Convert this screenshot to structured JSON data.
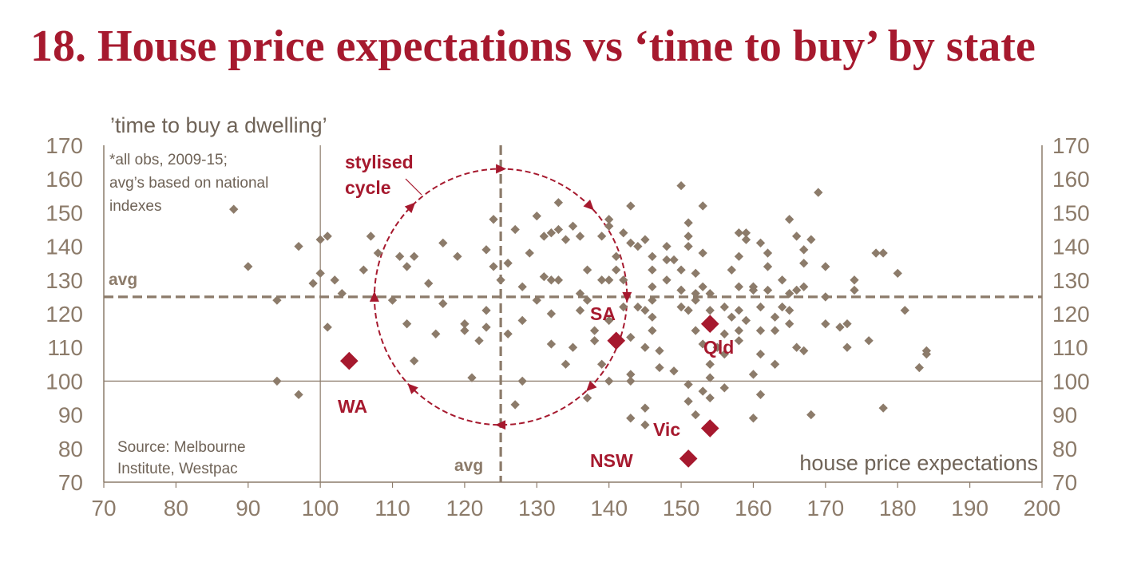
{
  "title": "18. House price expectations vs ‘time to buy’ by state",
  "chart_data": {
    "type": "scatter",
    "ylabel": "’time to buy a dwelling’",
    "xlabel": "house price expectations",
    "xlim": [
      70,
      200
    ],
    "ylim": [
      70,
      170
    ],
    "x_ticks": [
      "70",
      "80",
      "90",
      "100",
      "110",
      "120",
      "130",
      "140",
      "150",
      "160",
      "170",
      "180",
      "190",
      "200"
    ],
    "y_ticks": [
      "70",
      "80",
      "90",
      "100",
      "110",
      "120",
      "130",
      "140",
      "150",
      "160",
      "170"
    ],
    "y_ticks_right": [
      "70",
      "80",
      "90",
      "100",
      "110",
      "120",
      "130",
      "140",
      "150",
      "160",
      "170"
    ],
    "avg_x": 125,
    "avg_y": 125,
    "avg_label_h": "avg",
    "avg_label_v": "avg",
    "note_lines": [
      "*all obs, 2009-15;",
      "avg’s based on national",
      "indexes"
    ],
    "source_lines": [
      "Source: Melbourne",
      "Institute, Westpac"
    ],
    "cycle_label_lines": [
      "stylised",
      "cycle"
    ],
    "cycle": {
      "center_x": 125,
      "center_y": 125,
      "radius_x": 17.5,
      "radius_y": 38
    },
    "colors": {
      "observations": "#8c7b6a",
      "states": "#a6192e",
      "axis": "#8c7b6a"
    },
    "observations": [
      [
        88,
        151
      ],
      [
        90,
        134
      ],
      [
        94,
        124
      ],
      [
        94,
        100
      ],
      [
        97,
        140
      ],
      [
        97,
        96
      ],
      [
        99,
        129
      ],
      [
        100,
        142
      ],
      [
        100,
        132
      ],
      [
        101,
        116
      ],
      [
        101,
        143
      ],
      [
        102,
        130
      ],
      [
        103,
        126
      ],
      [
        106,
        133
      ],
      [
        107,
        143
      ],
      [
        108,
        138
      ],
      [
        110,
        124
      ],
      [
        111,
        137
      ],
      [
        112,
        134
      ],
      [
        112,
        117
      ],
      [
        113,
        106
      ],
      [
        113,
        137
      ],
      [
        115,
        129
      ],
      [
        116,
        114
      ],
      [
        117,
        141
      ],
      [
        117,
        123
      ],
      [
        119,
        137
      ],
      [
        120,
        115
      ],
      [
        120,
        117
      ],
      [
        121,
        101
      ],
      [
        122,
        112
      ],
      [
        123,
        116
      ],
      [
        123,
        121
      ],
      [
        123,
        139
      ],
      [
        124,
        134
      ],
      [
        124,
        148
      ],
      [
        125,
        130
      ],
      [
        126,
        114
      ],
      [
        126,
        135
      ],
      [
        127,
        145
      ],
      [
        127,
        93
      ],
      [
        128,
        100
      ],
      [
        128,
        128
      ],
      [
        129,
        138
      ],
      [
        130,
        149
      ],
      [
        130,
        124
      ],
      [
        131,
        131
      ],
      [
        131,
        143
      ],
      [
        132,
        144
      ],
      [
        132,
        111
      ],
      [
        132,
        120
      ],
      [
        132,
        130
      ],
      [
        133,
        153
      ],
      [
        133,
        130
      ],
      [
        133,
        145
      ],
      [
        134,
        142
      ],
      [
        135,
        110
      ],
      [
        135,
        146
      ],
      [
        136,
        143
      ],
      [
        136,
        126
      ],
      [
        137,
        124
      ],
      [
        137,
        133
      ],
      [
        138,
        112
      ],
      [
        138,
        115
      ],
      [
        139,
        130
      ],
      [
        139,
        143
      ],
      [
        139,
        105
      ],
      [
        140,
        100
      ],
      [
        140,
        146
      ],
      [
        140,
        130
      ],
      [
        140,
        118
      ],
      [
        140,
        148
      ],
      [
        141,
        133
      ],
      [
        141,
        137
      ],
      [
        142,
        130
      ],
      [
        142,
        144
      ],
      [
        142,
        122
      ],
      [
        143,
        100
      ],
      [
        143,
        102
      ],
      [
        143,
        89
      ],
      [
        143,
        113
      ],
      [
        143,
        141
      ],
      [
        143,
        152
      ],
      [
        144,
        122
      ],
      [
        144,
        140
      ],
      [
        145,
        142
      ],
      [
        145,
        121
      ],
      [
        145,
        92
      ],
      [
        145,
        110
      ],
      [
        146,
        133
      ],
      [
        146,
        137
      ],
      [
        146,
        128
      ],
      [
        146,
        124
      ],
      [
        146,
        119
      ],
      [
        147,
        109
      ],
      [
        147,
        104
      ],
      [
        148,
        140
      ],
      [
        148,
        136
      ],
      [
        148,
        130
      ],
      [
        149,
        136
      ],
      [
        150,
        127
      ],
      [
        150,
        133
      ],
      [
        150,
        127
      ],
      [
        150,
        122
      ],
      [
        150,
        158
      ],
      [
        151,
        140
      ],
      [
        151,
        147
      ],
      [
        151,
        143
      ],
      [
        151,
        121
      ],
      [
        151,
        99
      ],
      [
        151,
        94
      ],
      [
        152,
        90
      ],
      [
        152,
        126
      ],
      [
        152,
        132
      ],
      [
        152,
        124
      ],
      [
        152,
        115
      ],
      [
        153,
        152
      ],
      [
        153,
        128
      ],
      [
        153,
        97
      ],
      [
        153,
        138
      ],
      [
        153,
        111
      ],
      [
        154,
        105
      ],
      [
        154,
        121
      ],
      [
        154,
        126
      ],
      [
        154,
        101
      ],
      [
        154,
        95
      ],
      [
        155,
        110
      ],
      [
        156,
        98
      ],
      [
        156,
        114
      ],
      [
        156,
        108
      ],
      [
        157,
        133
      ],
      [
        157,
        119
      ],
      [
        158,
        144
      ],
      [
        158,
        128
      ],
      [
        158,
        115
      ],
      [
        158,
        112
      ],
      [
        158,
        121
      ],
      [
        159,
        118
      ],
      [
        159,
        142
      ],
      [
        159,
        144
      ],
      [
        160,
        127
      ],
      [
        160,
        102
      ],
      [
        160,
        89
      ],
      [
        161,
        108
      ],
      [
        161,
        122
      ],
      [
        161,
        115
      ],
      [
        161,
        96
      ],
      [
        161,
        141
      ],
      [
        162,
        138
      ],
      [
        162,
        134
      ],
      [
        162,
        127
      ],
      [
        163,
        119
      ],
      [
        163,
        115
      ],
      [
        164,
        122
      ],
      [
        164,
        130
      ],
      [
        165,
        126
      ],
      [
        165,
        148
      ],
      [
        165,
        121
      ],
      [
        165,
        117
      ],
      [
        166,
        143
      ],
      [
        166,
        127
      ],
      [
        166,
        110
      ],
      [
        167,
        109
      ],
      [
        167,
        128
      ],
      [
        167,
        135
      ],
      [
        167,
        139
      ],
      [
        168,
        142
      ],
      [
        168,
        90
      ],
      [
        169,
        156
      ],
      [
        170,
        117
      ],
      [
        170,
        134
      ],
      [
        172,
        116
      ],
      [
        173,
        110
      ],
      [
        173,
        117
      ],
      [
        174,
        130
      ],
      [
        174,
        127
      ],
      [
        176,
        112
      ],
      [
        177,
        138
      ],
      [
        178,
        138
      ],
      [
        178,
        92
      ],
      [
        180,
        132
      ],
      [
        181,
        121
      ],
      [
        183,
        104
      ],
      [
        184,
        109
      ],
      [
        184,
        108
      ],
      [
        160,
        128
      ],
      [
        156,
        122
      ],
      [
        149,
        103
      ],
      [
        137,
        95
      ],
      [
        145,
        87
      ],
      [
        134,
        105
      ],
      [
        128,
        118
      ],
      [
        136,
        121
      ],
      [
        146,
        115
      ],
      [
        158,
        137
      ],
      [
        163,
        105
      ],
      [
        170,
        125
      ]
    ],
    "states": [
      {
        "name": "WA",
        "x": 104,
        "y": 106
      },
      {
        "name": "SA",
        "x": 141,
        "y": 112
      },
      {
        "name": "Qld",
        "x": 154,
        "y": 117
      },
      {
        "name": "Vic",
        "x": 154,
        "y": 86
      },
      {
        "name": "NSW",
        "x": 151,
        "y": 77
      }
    ]
  }
}
